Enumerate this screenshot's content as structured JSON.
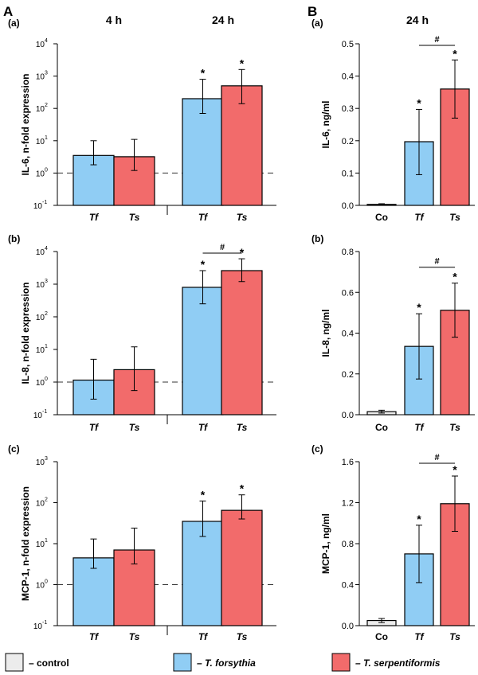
{
  "figure": {
    "panel_A_label": "A",
    "panel_B_label": "B",
    "col_4h": "4 h",
    "col_24h_A": "24 h",
    "col_24h_B": "24 h"
  },
  "colors": {
    "control": "#ececec",
    "forsythia": "#90cdf4",
    "serpentiformis": "#f26b6b"
  },
  "legend": {
    "items": [
      {
        "label": "– control",
        "color": "#ececec"
      },
      {
        "label": "– T. forsythia",
        "color": "#90cdf4"
      },
      {
        "label": "– T. serpentiformis",
        "color": "#f26b6b"
      }
    ]
  },
  "chart_data": [
    {
      "id": "A-a",
      "type": "bar",
      "scale": "log",
      "sub_label": "(a)",
      "ylabel": "IL-6, n-fold expression",
      "ylim_exp": [
        -1,
        4
      ],
      "ticks": [
        {
          "base": "10",
          "exp": "-1",
          "e": -1
        },
        {
          "base": "10",
          "exp": "0",
          "e": 0
        },
        {
          "base": "10",
          "exp": "1",
          "e": 1
        },
        {
          "base": "10",
          "exp": "2",
          "e": 2
        },
        {
          "base": "10",
          "exp": "3",
          "e": 3
        },
        {
          "base": "10",
          "exp": "4",
          "e": 4
        }
      ],
      "groups": [
        "4 h",
        "24 h"
      ],
      "bars": [
        {
          "label": "Tf",
          "value": 3.5,
          "err_low": 1.8,
          "err_high": 10,
          "color": "#90cdf4",
          "star": ""
        },
        {
          "label": "Ts",
          "value": 3.2,
          "err_low": 1.2,
          "err_high": 11,
          "color": "#f26b6b",
          "star": ""
        },
        {
          "label": "Tf",
          "value": 200,
          "err_low": 70,
          "err_high": 800,
          "color": "#90cdf4",
          "star": "*"
        },
        {
          "label": "Ts",
          "value": 500,
          "err_low": 140,
          "err_high": 1600,
          "color": "#f26b6b",
          "star": "*"
        }
      ],
      "reference_line": 1,
      "bracket": null
    },
    {
      "id": "A-b",
      "type": "bar",
      "scale": "log",
      "sub_label": "(b)",
      "ylabel": "IL-8, n-fold expression",
      "ylim_exp": [
        -1,
        4
      ],
      "ticks": [
        {
          "base": "10",
          "exp": "-1",
          "e": -1
        },
        {
          "base": "10",
          "exp": "0",
          "e": 0
        },
        {
          "base": "10",
          "exp": "1",
          "e": 1
        },
        {
          "base": "10",
          "exp": "2",
          "e": 2
        },
        {
          "base": "10",
          "exp": "3",
          "e": 3
        },
        {
          "base": "10",
          "exp": "4",
          "e": 4
        }
      ],
      "groups": [
        "4 h",
        "24 h"
      ],
      "bars": [
        {
          "label": "Tf",
          "value": 1.15,
          "err_low": 0.3,
          "err_high": 5,
          "color": "#90cdf4",
          "star": ""
        },
        {
          "label": "Ts",
          "value": 2.4,
          "err_low": 0.55,
          "err_high": 12,
          "color": "#f26b6b",
          "star": ""
        },
        {
          "label": "Tf",
          "value": 800,
          "err_low": 250,
          "err_high": 2600,
          "color": "#90cdf4",
          "star": "*"
        },
        {
          "label": "Ts",
          "value": 2600,
          "err_low": 1200,
          "err_high": 6000,
          "color": "#f26b6b",
          "star": "*"
        }
      ],
      "reference_line": 1,
      "bracket": {
        "from": 2,
        "to": 3,
        "text": "#"
      }
    },
    {
      "id": "A-c",
      "type": "bar",
      "scale": "log",
      "sub_label": "(c)",
      "ylabel": "MCP-1, n-fold expression",
      "ylim_exp": [
        -1,
        3
      ],
      "ticks": [
        {
          "base": "10",
          "exp": "-1",
          "e": -1
        },
        {
          "base": "10",
          "exp": "0",
          "e": 0
        },
        {
          "base": "10",
          "exp": "1",
          "e": 1
        },
        {
          "base": "10",
          "exp": "2",
          "e": 2
        },
        {
          "base": "10",
          "exp": "3",
          "e": 3
        }
      ],
      "groups": [
        "4 h",
        "24 h"
      ],
      "bars": [
        {
          "label": "Tf",
          "value": 4.5,
          "err_low": 2.5,
          "err_high": 13,
          "color": "#90cdf4",
          "star": ""
        },
        {
          "label": "Ts",
          "value": 7,
          "err_low": 3.2,
          "err_high": 24,
          "color": "#f26b6b",
          "star": ""
        },
        {
          "label": "Tf",
          "value": 35,
          "err_low": 15,
          "err_high": 110,
          "color": "#90cdf4",
          "star": "*"
        },
        {
          "label": "Ts",
          "value": 65,
          "err_low": 40,
          "err_high": 155,
          "color": "#f26b6b",
          "star": "*"
        }
      ],
      "reference_line": 1,
      "bracket": null
    },
    {
      "id": "B-a",
      "type": "bar",
      "scale": "linear",
      "sub_label": "(a)",
      "ylabel": "IL-6, ng/ml",
      "ylim": [
        0,
        0.5
      ],
      "ticks": [
        "0.0",
        "0.1",
        "0.2",
        "0.3",
        "0.4",
        "0.5"
      ],
      "tick_values": [
        0,
        0.1,
        0.2,
        0.3,
        0.4,
        0.5
      ],
      "bars": [
        {
          "label": "Co",
          "value": 0.003,
          "err_low": 0.001,
          "err_high": 0.005,
          "color": "#ececec",
          "star": ""
        },
        {
          "label": "Tf",
          "value": 0.197,
          "err_low": 0.095,
          "err_high": 0.297,
          "color": "#90cdf4",
          "star": "*"
        },
        {
          "label": "Ts",
          "value": 0.36,
          "err_low": 0.27,
          "err_high": 0.45,
          "color": "#f26b6b",
          "star": "*"
        }
      ],
      "bracket": {
        "from": 1,
        "to": 2,
        "text": "#"
      }
    },
    {
      "id": "B-b",
      "type": "bar",
      "scale": "linear",
      "sub_label": "(b)",
      "ylabel": "IL-8, ng/ml",
      "ylim": [
        0,
        0.8
      ],
      "ticks": [
        "0.0",
        "0.2",
        "0.4",
        "0.6",
        "0.8"
      ],
      "tick_values": [
        0,
        0.2,
        0.4,
        0.6,
        0.8
      ],
      "bars": [
        {
          "label": "Co",
          "value": 0.015,
          "err_low": 0.008,
          "err_high": 0.022,
          "color": "#ececec",
          "star": ""
        },
        {
          "label": "Tf",
          "value": 0.335,
          "err_low": 0.175,
          "err_high": 0.495,
          "color": "#90cdf4",
          "star": "*"
        },
        {
          "label": "Ts",
          "value": 0.512,
          "err_low": 0.38,
          "err_high": 0.645,
          "color": "#f26b6b",
          "star": "*"
        }
      ],
      "bracket": {
        "from": 1,
        "to": 2,
        "text": "#"
      }
    },
    {
      "id": "B-c",
      "type": "bar",
      "scale": "linear",
      "sub_label": "(c)",
      "ylabel": "MCP-1, ng/ml",
      "ylim": [
        0,
        1.6
      ],
      "ticks": [
        "0.0",
        "0.4",
        "0.8",
        "1.2",
        "1.6"
      ],
      "tick_values": [
        0,
        0.4,
        0.8,
        1.2,
        1.6
      ],
      "bars": [
        {
          "label": "Co",
          "value": 0.05,
          "err_low": 0.03,
          "err_high": 0.07,
          "color": "#ececec",
          "star": ""
        },
        {
          "label": "Tf",
          "value": 0.7,
          "err_low": 0.42,
          "err_high": 0.98,
          "color": "#90cdf4",
          "star": "*"
        },
        {
          "label": "Ts",
          "value": 1.19,
          "err_low": 0.92,
          "err_high": 1.46,
          "color": "#f26b6b",
          "star": "*"
        }
      ],
      "bracket": {
        "from": 1,
        "to": 2,
        "text": "#"
      }
    }
  ]
}
